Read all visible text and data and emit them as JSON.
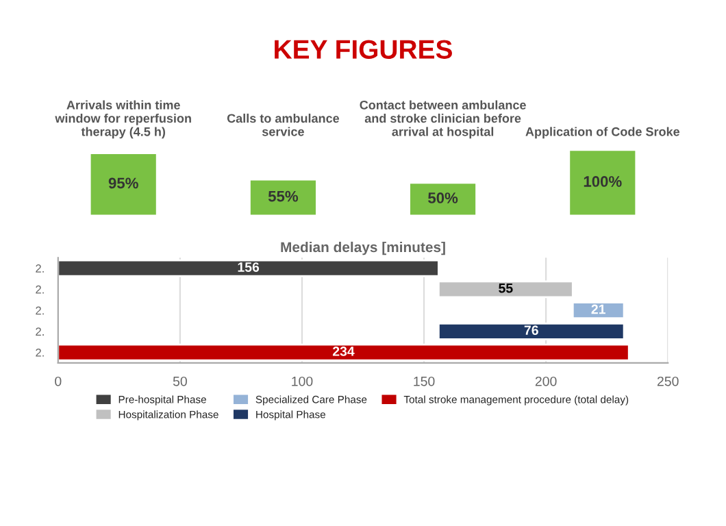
{
  "chart_data": [
    {
      "type": "bar",
      "title": "KEY FIGURES",
      "categories": [
        "Arrivals within time\nwindow for reperfusion\ntherapy (4.5 h)",
        "Calls to ambulance\nservice",
        "Contact between ambulance\nand stroke clinician before\narrival at hospital",
        "Application of Code Sroke"
      ],
      "values": [
        95,
        55,
        50,
        100
      ],
      "color": "#7ac143",
      "data_labels": true,
      "value_labels": [
        "95%",
        "55%",
        "50%",
        "100%"
      ]
    },
    {
      "type": "bar",
      "orientation": "horizontal",
      "title": "Median delays [minutes]",
      "categories": [
        "2.",
        "2.",
        "2.",
        "2.",
        "2."
      ],
      "xlim": [
        0,
        250
      ],
      "xticks": [
        0,
        50,
        100,
        150,
        200,
        250
      ],
      "grid": "x",
      "data_labels": true,
      "legend": "bottom",
      "series": [
        {
          "name": "Pre-hospital Phase",
          "color": "#404040",
          "values": [
            156,
            null,
            null,
            null,
            null
          ],
          "base": [
            0,
            null,
            null,
            null,
            null
          ]
        },
        {
          "name": "Hospitalization Phase",
          "color": "#c0c0c0",
          "values": [
            null,
            55,
            null,
            null,
            null
          ],
          "base": [
            null,
            156,
            null,
            null,
            null
          ]
        },
        {
          "name": "Specialized Care Phase",
          "color": "#95b3d7",
          "values": [
            null,
            null,
            21,
            null,
            null
          ],
          "base": [
            null,
            null,
            211,
            null,
            null
          ]
        },
        {
          "name": "Hospital Phase",
          "color": "#1f3864",
          "values": [
            null,
            null,
            null,
            76,
            null
          ],
          "base": [
            null,
            null,
            null,
            156,
            null
          ]
        },
        {
          "name": "Total stroke management procedure (total delay)",
          "color": "#c00000",
          "values": [
            null,
            null,
            null,
            null,
            234
          ],
          "base": [
            null,
            null,
            null,
            null,
            0
          ]
        }
      ]
    }
  ]
}
